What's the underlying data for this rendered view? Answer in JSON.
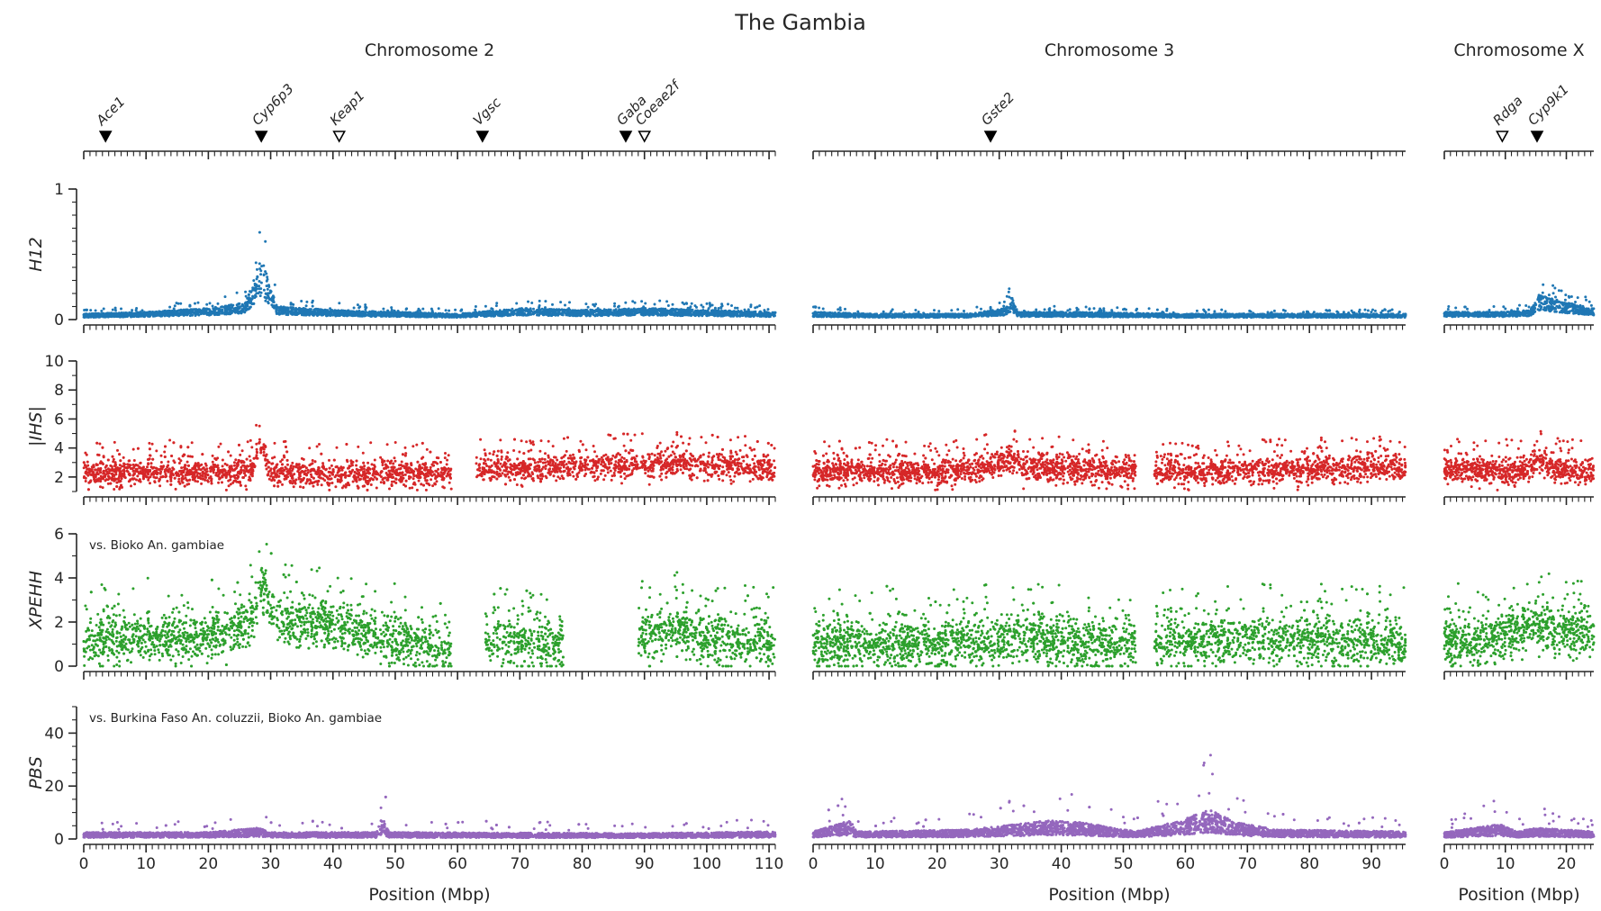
{
  "chart_data": {
    "type": "scatter",
    "title": "The Gambia",
    "xlabel": "Position (Mbp)",
    "chromosomes": [
      {
        "name": "Chromosome 2",
        "xlim": [
          0,
          111
        ],
        "xticks": [
          0,
          10,
          20,
          30,
          40,
          50,
          60,
          70,
          80,
          90,
          100,
          110
        ]
      },
      {
        "name": "Chromosome 3",
        "xlim": [
          0,
          95.5
        ],
        "xticks": [
          0,
          10,
          20,
          30,
          40,
          50,
          60,
          70,
          80,
          90
        ]
      },
      {
        "name": "Chromosome X",
        "xlim": [
          0,
          24.5
        ],
        "xticks": [
          0,
          10,
          20
        ]
      }
    ],
    "genes": [
      {
        "name": "Ace1",
        "chrom": 0,
        "pos": 3.5,
        "filled": true
      },
      {
        "name": "Cyp6p3",
        "chrom": 0,
        "pos": 28.5,
        "filled": true
      },
      {
        "name": "Keap1",
        "chrom": 0,
        "pos": 41.0,
        "filled": false
      },
      {
        "name": "Vgsc",
        "chrom": 0,
        "pos": 64.0,
        "filled": true
      },
      {
        "name": "Gaba",
        "chrom": 0,
        "pos": 87.0,
        "filled": true
      },
      {
        "name": "Coeae2f",
        "chrom": 0,
        "pos": 90.0,
        "filled": false
      },
      {
        "name": "Gste2",
        "chrom": 1,
        "pos": 28.6,
        "filled": true
      },
      {
        "name": "Rdga",
        "chrom": 2,
        "pos": 9.5,
        "filled": false
      },
      {
        "name": "Cyp9k1",
        "chrom": 2,
        "pos": 15.2,
        "filled": true
      }
    ],
    "panels": [
      {
        "ylabel": "H12",
        "ylim": [
          0,
          1
        ],
        "yticks": [
          0,
          1
        ],
        "color": "#1f77b4",
        "annotation": "",
        "series": [
          {
            "chrom": 0,
            "gaps": [],
            "base": [
              [
                0,
                0.03
              ],
              [
                10,
                0.04
              ],
              [
                20,
                0.06
              ],
              [
                26,
                0.09
              ],
              [
                28.5,
                0.33
              ],
              [
                31,
                0.07
              ],
              [
                40,
                0.05
              ],
              [
                50,
                0.04
              ],
              [
                60,
                0.03
              ],
              [
                70,
                0.06
              ],
              [
                80,
                0.05
              ],
              [
                90,
                0.06
              ],
              [
                100,
                0.05
              ],
              [
                111,
                0.04
              ]
            ]
          },
          {
            "chrom": 1,
            "gaps": [],
            "base": [
              [
                0,
                0.04
              ],
              [
                10,
                0.03
              ],
              [
                25,
                0.03
              ],
              [
                31,
                0.06
              ],
              [
                32,
                0.12
              ],
              [
                33,
                0.04
              ],
              [
                40,
                0.04
              ],
              [
                60,
                0.03
              ],
              [
                95.5,
                0.03
              ]
            ]
          },
          {
            "chrom": 2,
            "gaps": [],
            "base": [
              [
                0,
                0.04
              ],
              [
                10,
                0.04
              ],
              [
                14,
                0.05
              ],
              [
                15.5,
                0.13
              ],
              [
                20,
                0.09
              ],
              [
                23,
                0.07
              ],
              [
                24.5,
                0.06
              ]
            ]
          }
        ]
      },
      {
        "ylabel": "|IHS|",
        "ylim": [
          1,
          10
        ],
        "yticks": [
          2,
          4,
          6,
          8,
          10
        ],
        "color": "#d62728",
        "annotation": "",
        "series": [
          {
            "chrom": 0,
            "gaps": [
              [
                59,
                63
              ]
            ],
            "base": [
              [
                0,
                2.3
              ],
              [
                27,
                2.4
              ],
              [
                28.3,
                4.4
              ],
              [
                30,
                2.3
              ],
              [
                40,
                2.1
              ],
              [
                58,
                2.4
              ],
              [
                63,
                2.5
              ],
              [
                80,
                2.7
              ],
              [
                95,
                2.9
              ],
              [
                111,
                2.6
              ]
            ]
          },
          {
            "chrom": 1,
            "gaps": [
              [
                52,
                55
              ]
            ],
            "base": [
              [
                0,
                2.4
              ],
              [
                25,
                2.4
              ],
              [
                32,
                3.2
              ],
              [
                34,
                2.7
              ],
              [
                45,
                2.5
              ],
              [
                60,
                2.3
              ],
              [
                80,
                2.5
              ],
              [
                95.5,
                2.7
              ]
            ]
          },
          {
            "chrom": 2,
            "gaps": [],
            "base": [
              [
                0,
                2.5
              ],
              [
                14,
                2.4
              ],
              [
                15.5,
                3.4
              ],
              [
                17,
                2.7
              ],
              [
                19.5,
                2.4
              ]
            ]
          }
        ]
      },
      {
        "ylabel": "XPEHH",
        "ylim": [
          0,
          6
        ],
        "yticks": [
          0,
          2,
          4,
          6
        ],
        "color": "#2ca02c",
        "annotation": "vs. Bioko An. gambiae",
        "series": [
          {
            "chrom": 0,
            "gaps": [
              [
                59,
                64.5
              ],
              [
                77,
                89
              ]
            ],
            "base": [
              [
                0,
                1.1
              ],
              [
                10,
                1.4
              ],
              [
                20,
                1.3
              ],
              [
                27,
                2.1
              ],
              [
                28.5,
                3.7
              ],
              [
                31,
                2.0
              ],
              [
                38,
                2.0
              ],
              [
                45,
                1.4
              ],
              [
                58,
                0.8
              ],
              [
                65,
                1.2
              ],
              [
                75,
                1.0
              ],
              [
                90,
                1.3
              ],
              [
                95,
                1.7
              ],
              [
                100,
                1.2
              ],
              [
                111,
                1.1
              ]
            ]
          },
          {
            "chrom": 1,
            "gaps": [
              [
                52,
                55
              ]
            ],
            "base": [
              [
                0,
                1.0
              ],
              [
                30,
                1.1
              ],
              [
                33,
                1.3
              ],
              [
                40,
                1.1
              ],
              [
                50,
                1.0
              ],
              [
                68,
                1.2
              ],
              [
                95.5,
                1.1
              ]
            ]
          },
          {
            "chrom": 2,
            "gaps": [],
            "base": [
              [
                0,
                1.1
              ],
              [
                10,
                1.3
              ],
              [
                15,
                2.0
              ],
              [
                19.5,
                1.5
              ]
            ]
          }
        ]
      },
      {
        "ylabel": "PBS",
        "ylim": [
          0,
          50
        ],
        "yticks": [
          0,
          20,
          40
        ],
        "color": "#9467bd",
        "annotation": "vs. Burkina Faso An. coluzzii, Bioko An. gambiae",
        "series": [
          {
            "chrom": 0,
            "gaps": [],
            "base": [
              [
                0,
                1.8
              ],
              [
                20,
                1.8
              ],
              [
                28,
                3.0
              ],
              [
                30,
                1.8
              ],
              [
                47,
                1.8
              ],
              [
                48,
                6.5
              ],
              [
                49,
                1.8
              ],
              [
                90,
                1.5
              ],
              [
                111,
                2.0
              ]
            ]
          },
          {
            "chrom": 1,
            "gaps": [],
            "base": [
              [
                0,
                2.0
              ],
              [
                6,
                5.0
              ],
              [
                7,
                2.0
              ],
              [
                25,
                2.5
              ],
              [
                38,
                5.0
              ],
              [
                43,
                4.5
              ],
              [
                52,
                2.0
              ],
              [
                60,
                5.5
              ],
              [
                64,
                8.0
              ],
              [
                68,
                4.5
              ],
              [
                75,
                2.5
              ],
              [
                95.5,
                2.0
              ]
            ]
          },
          {
            "chrom": 2,
            "gaps": [],
            "base": [
              [
                0,
                1.8
              ],
              [
                9,
                4.0
              ],
              [
                12,
                2.0
              ],
              [
                15,
                3.0
              ],
              [
                24.5,
                2.0
              ]
            ]
          }
        ]
      }
    ]
  }
}
